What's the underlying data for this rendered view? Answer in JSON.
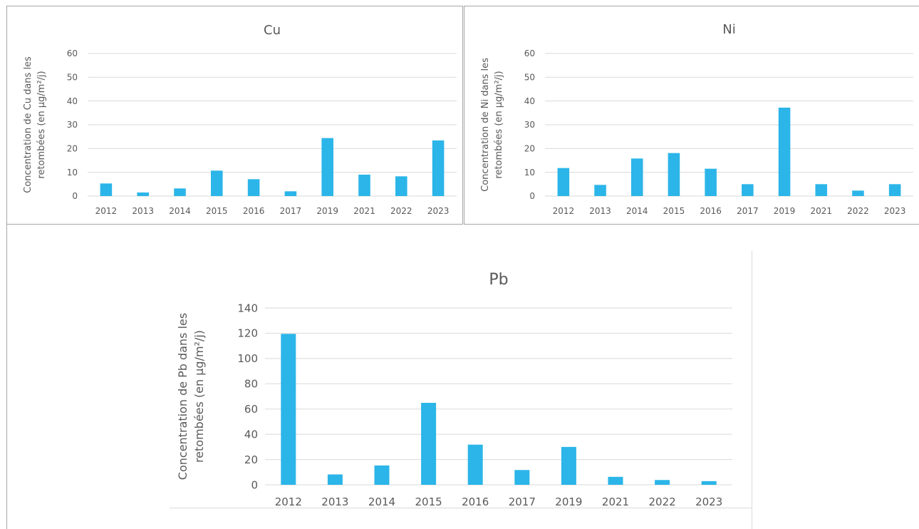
{
  "chart_data": [
    {
      "type": "bar",
      "title": "Cu",
      "ylabel_lines": [
        "Concentration de Cu dans les",
        "retombées (en µg/m²/j)"
      ],
      "categories": [
        "2012",
        "2013",
        "2014",
        "2015",
        "2016",
        "2017",
        "2019",
        "2021",
        "2022",
        "2023"
      ],
      "values": [
        5.3,
        1.5,
        3.2,
        10.7,
        7.1,
        2.0,
        24.4,
        9.0,
        8.3,
        23.4
      ],
      "ylim": [
        0,
        60
      ],
      "yticks": [
        0,
        10,
        20,
        30,
        40,
        50,
        60
      ],
      "color": "#2bb5e8",
      "grid": true
    },
    {
      "type": "bar",
      "title": "Ni",
      "ylabel_lines": [
        "Concentration de Ni dans les",
        "retombées (en µg/m²/j)"
      ],
      "categories": [
        "2012",
        "2013",
        "2014",
        "2015",
        "2016",
        "2017",
        "2019",
        "2021",
        "2022",
        "2023"
      ],
      "values": [
        11.8,
        4.7,
        15.8,
        18.1,
        11.5,
        5.0,
        37.2,
        5.0,
        2.3,
        5.0
      ],
      "ylim": [
        0,
        60
      ],
      "yticks": [
        0,
        10,
        20,
        30,
        40,
        50,
        60
      ],
      "color": "#2bb5e8",
      "grid": true
    },
    {
      "type": "bar",
      "title": "Pb",
      "ylabel_lines": [
        "Concentration de Pb dans les",
        "retombées (en µg/m²/j)"
      ],
      "categories": [
        "2012",
        "2013",
        "2014",
        "2015",
        "2016",
        "2017",
        "2019",
        "2021",
        "2022",
        "2023"
      ],
      "values": [
        119.5,
        8.2,
        15.3,
        64.9,
        31.8,
        11.7,
        30.0,
        6.3,
        3.8,
        2.9
      ],
      "ylim": [
        0,
        140
      ],
      "yticks": [
        0,
        20,
        40,
        60,
        80,
        100,
        120,
        140
      ],
      "color": "#2bb5e8",
      "grid": true
    }
  ]
}
